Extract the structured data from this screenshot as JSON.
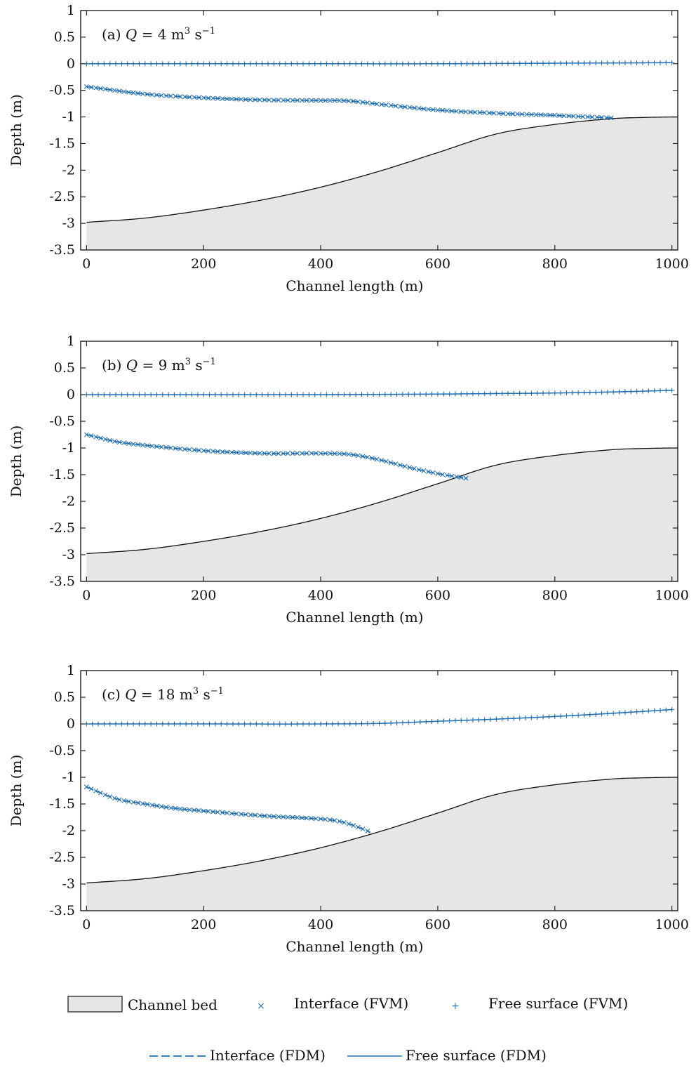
{
  "figure": {
    "legend": {
      "channel_bed": "Channel bed",
      "interface_fvm": "Interface (FVM)",
      "free_surface_fvm": "Free surface (FVM)",
      "interface_fdm": "Interface (FDM)",
      "free_surface_fdm": "Free surface (FDM)"
    },
    "colors": {
      "series": "#1f6fb2",
      "bed_fill": "#e6e6e6",
      "bed_line": "#111111",
      "axes": "#111111"
    }
  },
  "chart_data": [
    {
      "type": "line",
      "panel_label": "(a) Q = 4 m³ s⁻¹",
      "label_parts": {
        "prefix": "(a) ",
        "q": "Q",
        "eq": " = 4 m",
        "exp1": "3",
        "s": " s",
        "exp2": "−1"
      },
      "xlabel": "Channel length (m)",
      "ylabel": "Depth (m)",
      "xlim": [
        -10,
        1010
      ],
      "ylim": [
        -3.5,
        1
      ],
      "xticks": [
        0,
        200,
        400,
        600,
        800,
        1000
      ],
      "yticks": [
        1,
        0.5,
        0,
        -0.5,
        -1,
        -1.5,
        -2,
        -2.5,
        -3,
        -3.5
      ],
      "ytick_labels": [
        "1",
        "0.5",
        "0",
        "-0.5",
        "-1",
        "-1.5",
        "-2",
        "-2.5",
        "-3",
        "-3.5"
      ],
      "series": [
        {
          "name": "Channel bed",
          "x": [
            0,
            100,
            200,
            300,
            400,
            500,
            600,
            700,
            800,
            900,
            950,
            1000,
            1010
          ],
          "y": [
            -2.98,
            -2.9,
            -2.75,
            -2.56,
            -2.32,
            -2.02,
            -1.67,
            -1.32,
            -1.14,
            -1.03,
            -1.01,
            -1.0,
            -1.0
          ]
        },
        {
          "name": "Interface (FVM)",
          "x": [
            0,
            100,
            200,
            300,
            400,
            450,
            500,
            600,
            700,
            800,
            900
          ],
          "y": [
            -0.43,
            -0.57,
            -0.64,
            -0.68,
            -0.69,
            -0.7,
            -0.76,
            -0.87,
            -0.93,
            -0.97,
            -1.02
          ]
        },
        {
          "name": "Free surface (FVM)",
          "x": [
            0,
            200,
            400,
            600,
            800,
            1000
          ],
          "y": [
            0,
            0,
            0,
            0,
            0.01,
            0.02
          ]
        },
        {
          "name": "Interface (FDM)",
          "x": [
            0,
            100,
            200,
            300,
            400,
            450,
            500,
            600,
            700,
            800,
            900
          ],
          "y": [
            -0.43,
            -0.57,
            -0.64,
            -0.68,
            -0.69,
            -0.7,
            -0.76,
            -0.87,
            -0.93,
            -0.97,
            -1.02
          ]
        },
        {
          "name": "Free surface (FDM)",
          "x": [
            0,
            200,
            400,
            600,
            800,
            1000
          ],
          "y": [
            0,
            0,
            0,
            0,
            0.01,
            0.02
          ]
        }
      ]
    },
    {
      "type": "line",
      "panel_label": "(b) Q = 9 m³ s⁻¹",
      "label_parts": {
        "prefix": "(b) ",
        "q": "Q",
        "eq": " = 9 m",
        "exp1": "3",
        "s": " s",
        "exp2": "−1"
      },
      "xlabel": "Channel length (m)",
      "ylabel": "Depth (m)",
      "xlim": [
        -10,
        1010
      ],
      "ylim": [
        -3.5,
        1
      ],
      "xticks": [
        0,
        200,
        400,
        600,
        800,
        1000
      ],
      "yticks": [
        1,
        0.5,
        0,
        -0.5,
        -1,
        -1.5,
        -2,
        -2.5,
        -3,
        -3.5
      ],
      "ytick_labels": [
        "1",
        "0.5",
        "0",
        "-0.5",
        "-1",
        "-1.5",
        "-2",
        "-2.5",
        "-3",
        "-3.5"
      ],
      "series": [
        {
          "name": "Channel bed",
          "x": [
            0,
            100,
            200,
            300,
            400,
            500,
            600,
            700,
            800,
            900,
            950,
            1000,
            1010
          ],
          "y": [
            -2.98,
            -2.9,
            -2.75,
            -2.56,
            -2.32,
            -2.02,
            -1.67,
            -1.32,
            -1.14,
            -1.03,
            -1.01,
            -1.0,
            -1.0
          ]
        },
        {
          "name": "Interface (FVM)",
          "x": [
            0,
            50,
            100,
            200,
            300,
            400,
            450,
            500,
            550,
            600,
            650
          ],
          "y": [
            -0.75,
            -0.88,
            -0.95,
            -1.05,
            -1.1,
            -1.1,
            -1.12,
            -1.22,
            -1.36,
            -1.48,
            -1.57
          ]
        },
        {
          "name": "Free surface (FVM)",
          "x": [
            0,
            200,
            400,
            600,
            700,
            800,
            900,
            1000
          ],
          "y": [
            0,
            0,
            0,
            0.01,
            0.02,
            0.03,
            0.05,
            0.08
          ]
        },
        {
          "name": "Interface (FDM)",
          "x": [
            0,
            50,
            100,
            200,
            300,
            400,
            450,
            500,
            550,
            600,
            650
          ],
          "y": [
            -0.75,
            -0.88,
            -0.95,
            -1.05,
            -1.1,
            -1.1,
            -1.12,
            -1.22,
            -1.36,
            -1.48,
            -1.57
          ]
        },
        {
          "name": "Free surface (FDM)",
          "x": [
            0,
            200,
            400,
            600,
            700,
            800,
            900,
            1000
          ],
          "y": [
            0,
            0,
            0,
            0.01,
            0.02,
            0.03,
            0.05,
            0.08
          ]
        }
      ]
    },
    {
      "type": "line",
      "panel_label": "(c) Q = 18 m³ s⁻¹",
      "label_parts": {
        "prefix": "(c) ",
        "q": "Q",
        "eq": " = 18 m",
        "exp1": "3",
        "s": " s",
        "exp2": "−1"
      },
      "xlabel": "Channel length (m)",
      "ylabel": "Depth (m)",
      "xlim": [
        -10,
        1010
      ],
      "ylim": [
        -3.5,
        1
      ],
      "xticks": [
        0,
        200,
        400,
        600,
        800,
        1000
      ],
      "yticks": [
        1,
        0.5,
        0,
        -0.5,
        -1,
        -1.5,
        -2,
        -2.5,
        -3,
        -3.5
      ],
      "ytick_labels": [
        "1",
        "0.5",
        "0",
        "-0.5",
        "-1",
        "-1.5",
        "-2",
        "-2.5",
        "-3",
        "-3.5"
      ],
      "series": [
        {
          "name": "Channel bed",
          "x": [
            0,
            100,
            200,
            300,
            400,
            500,
            600,
            700,
            800,
            900,
            950,
            1000,
            1010
          ],
          "y": [
            -2.98,
            -2.9,
            -2.75,
            -2.56,
            -2.32,
            -2.02,
            -1.67,
            -1.32,
            -1.14,
            -1.03,
            -1.01,
            -1.0,
            -1.0
          ]
        },
        {
          "name": "Interface (FVM)",
          "x": [
            0,
            50,
            100,
            150,
            200,
            300,
            400,
            430,
            450,
            470,
            485
          ],
          "y": [
            -1.18,
            -1.4,
            -1.5,
            -1.58,
            -1.63,
            -1.72,
            -1.78,
            -1.82,
            -1.88,
            -1.96,
            -2.03
          ]
        },
        {
          "name": "Free surface (FVM)",
          "x": [
            0,
            200,
            400,
            500,
            600,
            700,
            800,
            900,
            1000
          ],
          "y": [
            0,
            0,
            0,
            0.01,
            0.05,
            0.09,
            0.14,
            0.2,
            0.27
          ]
        },
        {
          "name": "Interface (FDM)",
          "x": [
            0,
            50,
            100,
            150,
            200,
            300,
            400,
            430,
            450,
            470,
            485
          ],
          "y": [
            -1.18,
            -1.4,
            -1.5,
            -1.58,
            -1.63,
            -1.72,
            -1.78,
            -1.82,
            -1.88,
            -1.96,
            -2.03
          ]
        },
        {
          "name": "Free surface (FDM)",
          "x": [
            0,
            200,
            400,
            500,
            600,
            700,
            800,
            900,
            1000
          ],
          "y": [
            0,
            0,
            0,
            0.01,
            0.05,
            0.09,
            0.14,
            0.2,
            0.27
          ]
        }
      ]
    }
  ]
}
